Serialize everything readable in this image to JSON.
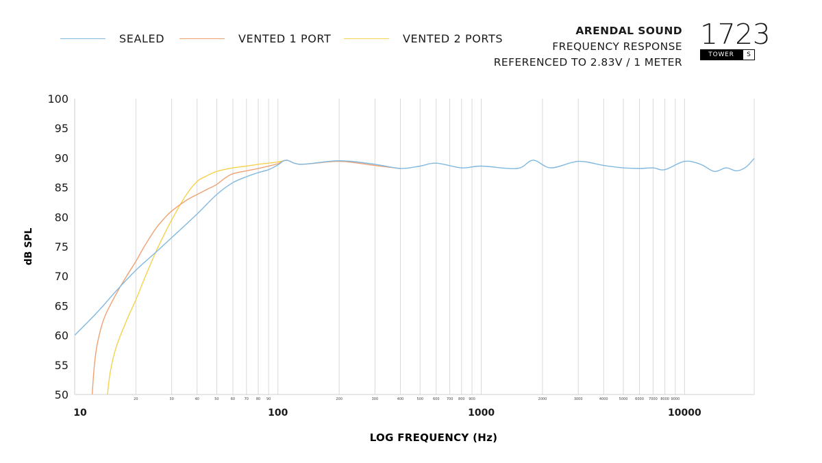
{
  "legend": [
    {
      "label": "SEALED",
      "color": "#7fb8e0"
    },
    {
      "label": "VENTED 1 PORT",
      "color": "#f0a070"
    },
    {
      "label": "VENTED 2 PORTS",
      "color": "#f5d24a"
    }
  ],
  "brand": {
    "line1": "ARENDAL SOUND",
    "line2": "FREQUENCY RESPONSE",
    "line3": "REFERENCED TO 2.83V / 1 METER"
  },
  "model": {
    "number": "1723",
    "badge_left": "TOWER",
    "badge_right": "S"
  },
  "chart_data": {
    "type": "line",
    "xlabel": "LOG FREQUENCY (Hz)",
    "ylabel": "dB SPL",
    "x_scale": "log",
    "xlim": [
      10,
      22000
    ],
    "ylim": [
      50,
      100
    ],
    "y_ticks": [
      100,
      95,
      90,
      85,
      80,
      75,
      70,
      65,
      60,
      55,
      50
    ],
    "x_major_ticks": [
      10,
      100,
      1000,
      10000
    ],
    "x_major_labels": [
      "10",
      "100",
      "1000",
      "10000"
    ],
    "x_minor_ticks": [
      20,
      30,
      40,
      50,
      60,
      70,
      80,
      90,
      200,
      300,
      400,
      500,
      600,
      700,
      800,
      900,
      2000,
      3000,
      4000,
      5000,
      6000,
      7000,
      8000,
      9000
    ],
    "x_minor_labels": [
      "20",
      "30",
      "40",
      "50",
      "60",
      "70",
      "80",
      "90",
      "200",
      "300",
      "400",
      "500",
      "600",
      "700",
      "800",
      "900",
      "2000",
      "3000",
      "4000",
      "5000",
      "6000",
      "7000",
      "8000",
      "9000"
    ],
    "grid": "vertical",
    "series": [
      {
        "name": "SEALED",
        "color": "#7fb8e0",
        "x": [
          10,
          13,
          16,
          20,
          25,
          30,
          40,
          50,
          60,
          70,
          80,
          90,
          100,
          110,
          130,
          200,
          300,
          400,
          500,
          600,
          800,
          1000,
          1500,
          1800,
          2200,
          3000,
          4000,
          5000,
          6000,
          7000,
          8000,
          10000,
          12000,
          14000,
          16000,
          18000,
          20000,
          22000
        ],
        "values": [
          60,
          64,
          67.5,
          71,
          74,
          76.5,
          80.5,
          83.8,
          85.8,
          86.8,
          87.5,
          88,
          88.8,
          89.6,
          88.9,
          89.5,
          88.9,
          88.2,
          88.6,
          89.1,
          88.3,
          88.6,
          88.2,
          89.6,
          88.3,
          89.4,
          88.7,
          88.3,
          88.2,
          88.3,
          88.0,
          89.4,
          88.9,
          87.7,
          88.3,
          87.8,
          88.4,
          89.9
        ]
      },
      {
        "name": "VENTED 1 PORT",
        "color": "#f0a070",
        "x": [
          12.2,
          12.5,
          13,
          14,
          16,
          18,
          20,
          22,
          25,
          28,
          30,
          35,
          40,
          45,
          50,
          55,
          60,
          70,
          80,
          90,
          100,
          110,
          130,
          200,
          300,
          400
        ],
        "values": [
          50,
          55,
          59,
          63,
          67,
          70,
          72.5,
          75,
          78,
          80,
          81,
          82.7,
          83.8,
          84.7,
          85.5,
          86.6,
          87.3,
          87.8,
          88.2,
          88.6,
          89,
          89.6,
          88.9,
          89.4,
          88.7,
          88.2
        ]
      },
      {
        "name": "VENTED 2 PORTS",
        "color": "#f5d24a",
        "x": [
          14.5,
          15,
          16,
          18,
          20,
          22,
          25,
          28,
          30,
          35,
          40,
          45,
          50,
          60,
          70,
          80,
          90,
          100,
          110
        ],
        "values": [
          50,
          54,
          58,
          62.5,
          66,
          69.5,
          74,
          77.5,
          79.5,
          83.5,
          86,
          87,
          87.7,
          88.3,
          88.6,
          88.9,
          89.1,
          89.3,
          89.6
        ]
      }
    ]
  }
}
